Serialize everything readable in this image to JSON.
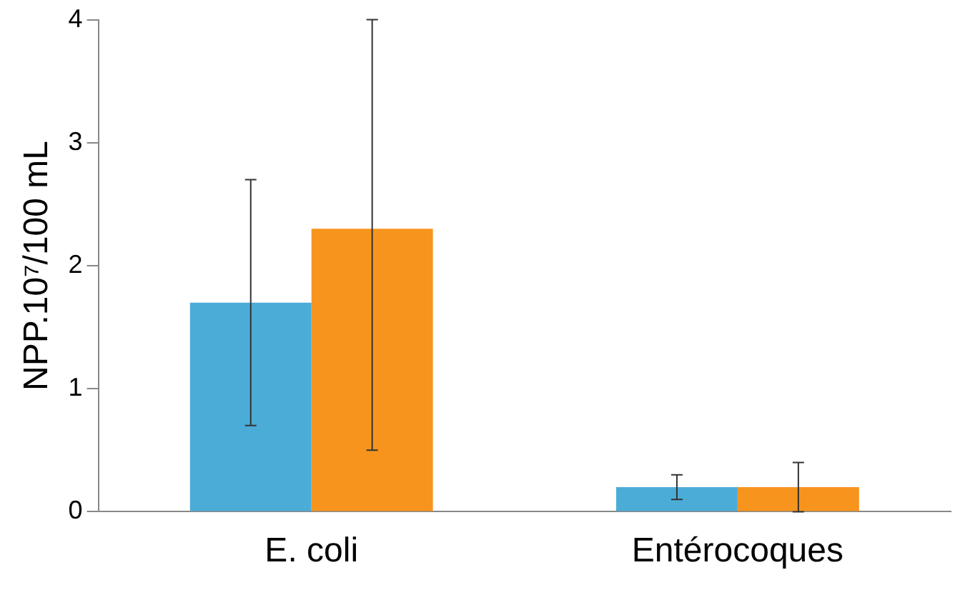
{
  "chart_data": {
    "type": "bar",
    "ylabel": "NPP.10⁷/100 mL",
    "categories": [
      "E. coli",
      "Entérocoques"
    ],
    "series": [
      {
        "color": "#4bacd8",
        "values": [
          1.7,
          0.2
        ],
        "errors": [
          [
            0.7,
            2.7
          ],
          [
            0.1,
            0.3
          ]
        ]
      },
      {
        "color": "#f7941d",
        "values": [
          2.3,
          0.2
        ],
        "errors": [
          [
            0.5,
            4
          ],
          [
            0,
            0.4
          ]
        ]
      }
    ],
    "ylim": [
      0,
      4
    ],
    "yticks": [
      0,
      1,
      2,
      3,
      4
    ],
    "grid": false,
    "legend": false
  }
}
